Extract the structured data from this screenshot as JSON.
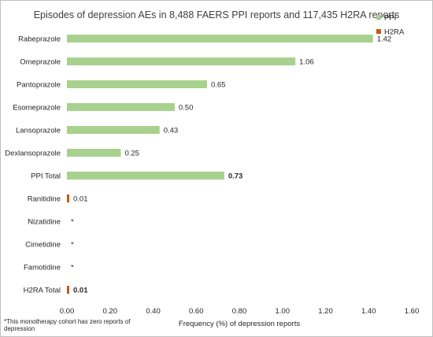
{
  "chart_data": {
    "type": "bar",
    "orientation": "horizontal",
    "title": "Episodes of depression AEs in 8,488 FAERS PPI reports and 117,435 H2RA reports",
    "xlabel": "Frequency (%) of depression reports",
    "ylabel": "",
    "xlim": [
      0,
      1.6
    ],
    "xticks": [
      "0.00",
      "0.20",
      "0.40",
      "0.60",
      "0.80",
      "1.00",
      "1.20",
      "1.40",
      "1.60"
    ],
    "grid": false,
    "legend_position": "top-right",
    "series": [
      {
        "name": "PPI",
        "color": "#a9d18e"
      },
      {
        "name": "H2RA",
        "color": "#c55a11"
      }
    ],
    "bars": [
      {
        "category": "Rabeprazole",
        "series": "PPI",
        "value": 1.42,
        "label": "1.42",
        "bold": false
      },
      {
        "category": "Omeprazole",
        "series": "PPI",
        "value": 1.06,
        "label": "1.06",
        "bold": false
      },
      {
        "category": "Pantoprazole",
        "series": "PPI",
        "value": 0.65,
        "label": "0.65",
        "bold": false
      },
      {
        "category": "Esomeprazole",
        "series": "PPI",
        "value": 0.5,
        "label": "0.50",
        "bold": false
      },
      {
        "category": "Lansoprazole",
        "series": "PPI",
        "value": 0.43,
        "label": "0.43",
        "bold": false
      },
      {
        "category": "Dexlansoprazole",
        "series": "PPI",
        "value": 0.25,
        "label": "0.25",
        "bold": false
      },
      {
        "category": "PPI Total",
        "series": "PPI",
        "value": 0.73,
        "label": "0.73",
        "bold": true
      },
      {
        "category": "Ranitidine",
        "series": "H2RA",
        "value": 0.01,
        "label": "0.01",
        "bold": false
      },
      {
        "category": "Nizatidine",
        "series": "H2RA",
        "value": 0,
        "label": "*",
        "bold": false
      },
      {
        "category": "Cimetidine",
        "series": "H2RA",
        "value": 0,
        "label": "*",
        "bold": false
      },
      {
        "category": "Famotidine",
        "series": "H2RA",
        "value": 0,
        "label": "*",
        "bold": false
      },
      {
        "category": "H2RA Total",
        "series": "H2RA",
        "value": 0.01,
        "label": "0.01",
        "bold": true
      }
    ],
    "footnote_lines": [
      "*This monotherapy cohort has zero reports of",
      "depression"
    ]
  }
}
